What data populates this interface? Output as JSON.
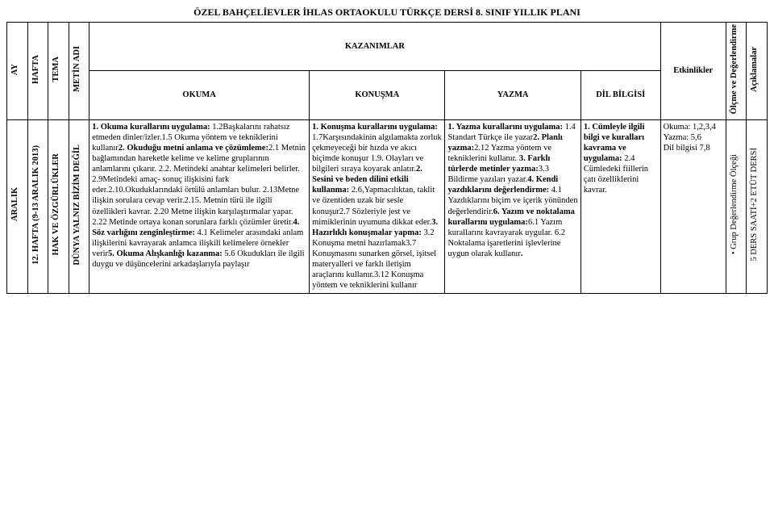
{
  "title": "ÖZEL BAHÇELİEVLER İHLAS ORTAOKULU TÜRKÇE DERSİ 8. SINIF YILLIK PLANI",
  "headers": {
    "ay": "AY",
    "hafta": "HAFTA",
    "tema": "TEMA",
    "metin_adi": "METİN ADI",
    "kazanimlar": "KAZANIMLAR",
    "okuma": "OKUMA",
    "konusma": "KONUŞMA",
    "yazma": "YAZMA",
    "dil_bilgisi": "DİL BİLGİSİ",
    "etkinlikler": "Etkinlikler",
    "olcme": "Ölçme ve Değerlendirme",
    "aciklamalar": "Açıklamalar"
  },
  "row": {
    "ay": "ARALIK",
    "hafta": "12. HAFTA (9-13 ARALIK 2013)",
    "tema": "HAK VE ÖZGÜRLÜKLER",
    "metin_adi": "DÜNYA YALNIZ BİZİM DEĞİL",
    "okuma": "1. Okuma kurallarını uygulama: 1.2Başkalarını rahatsız etmeden dinler/izler.1.5 Okuma yöntem ve tekniklerini kullanır2. Okuduğu metni anlama ve çözümleme:2.1 Metnin bağlamından hareketle kelime ve kelime gruplarının anlamlarını çıkarır. 2.2. Metindeki anahtar kelimeleri belirler. 2.9Metindeki amaç- sonuç ilişkisini fark eder.2.10.Okuduklarındaki örtülü anlamları bulur. 2.13Metne ilişkin sorulara cevap verir.2.15. Metnin türü ile ilgili özellikleri kavrar. 2.20 Metne ilişkin karşılaştırmalar yapar. 2.22 Metinde ortaya konan sorunlara farklı çözümler üretir.4. Söz varlığını zenginleştirme: 4.1 Kelimeler arasındaki anlam ilişkilerini kavrayarak anlamca ilişkili kelimelere örnekler verir5. Okuma Alışkanlığı kazanma: 5.6 Okudukları ile ilgili duygu ve düşüncelerini arkadaşlarıyla paylaşır",
    "konusma": "1. Konuşma kurallarını uygulama: 1.7Karşısındakinin algılamakta zorluk çekmeyeceği bir hızda ve akıcı biçimde konuşur 1.9. Olayları ve bilgileri sıraya koyarak anlatır.2. Sesini ve beden dilini etkili kullanma: 2.6,Yapmacılıktan, taklit ve özentiden uzak bir sesle konuşur2.7 Sözleriyle jest ve mimiklerinin uyumuna dikkat eder.3. Hazırlıklı konuşmalar yapma: 3.2 Konuşma metni hazırlamak3.7 Konuşmasını sunarken görsel, işitsel materyalleri ve farklı iletişim araçlarını kullanır.3.12 Konuşma yöntem ve tekniklerini kullanır",
    "yazma": "1. Yazma kurallarını uygulama: 1.4 Standart Türkçe ile yazar2. Planlı yazma:2.12 Yazma yöntem ve tekniklerini kullanır. 3. Farklı türlerde metinler yazma:3.3 Bildirme yazıları yazar.4. Kendi yazdıklarını değerlendirme: 4.1 Yazdıklarını biçim ve içerik yönünden değerlendirir.6. Yazım ve noktalama kurallarını uygulama:6.1 Yazım kurallarını kavrayarak uygular. 6.2 Noktalama işaretlerini işlevlerine uygun olarak kullanır.",
    "dil_bilgisi": "1. Cümleyle ilgili bilgi ve kuralları kavrama ve uygulama: 2.4 Cümledeki fiillerin çatı özelliklerini kavrar.",
    "etkinlikler": "Okuma: 1,2,3,4\nYazma: 5,6\nDil bilgisi 7,8",
    "olcme_text": "Grup Değerlendirme Ölçeği",
    "aciklamalar": "5 DERS SAATİ+2 ETÜT DERSİ"
  }
}
